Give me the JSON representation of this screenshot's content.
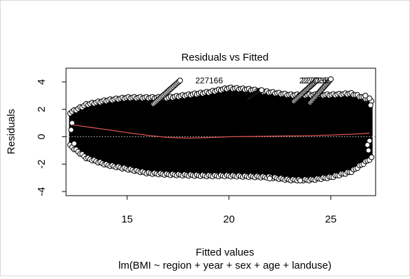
{
  "chart_data": {
    "type": "scatter",
    "title": "Residuals vs Fitted",
    "xlabel": "Fitted values",
    "ylabel": "Residuals",
    "subtitle": "lm(BMI ~ region + year + sex + age + landuse)",
    "xlim": [
      12,
      27.2
    ],
    "ylim": [
      -4.3,
      5
    ],
    "xticks": [
      15,
      20,
      25
    ],
    "yticks": [
      -4,
      -2,
      0,
      2,
      4
    ],
    "reference_line_y": 0,
    "point_color": "#000000",
    "smoother_color": "#d9534f",
    "reference_color": "#9e9e9e",
    "smoother": {
      "x": [
        12.3,
        13,
        14,
        15,
        16,
        17,
        18,
        19,
        20,
        21,
        22,
        23,
        24,
        25,
        26,
        26.9
      ],
      "y": [
        0.88,
        0.72,
        0.52,
        0.3,
        0.1,
        -0.05,
        -0.1,
        -0.06,
        0.0,
        0.02,
        0.04,
        0.06,
        0.08,
        0.12,
        0.18,
        0.26
      ]
    },
    "envelope": {
      "x": [
        12.2,
        13,
        14,
        15,
        16,
        17,
        18,
        19,
        20,
        21,
        22,
        23,
        24,
        25,
        26,
        27.0
      ],
      "upper": [
        1.7,
        2.3,
        2.6,
        2.8,
        2.8,
        2.8,
        3.0,
        3.2,
        3.5,
        3.4,
        3.2,
        3.0,
        3.0,
        3.0,
        3.1,
        2.6
      ],
      "lower": [
        -0.6,
        -1.5,
        -2.0,
        -2.3,
        -2.6,
        -2.7,
        -2.75,
        -2.8,
        -2.8,
        -2.85,
        -2.9,
        -3.1,
        -3.1,
        -2.9,
        -2.5,
        -1.5
      ]
    },
    "outlier_streaks": [
      {
        "x0": 16.3,
        "y0": 2.4,
        "x1": 17.6,
        "y1": 4.1
      },
      {
        "x0": 23.2,
        "y0": 2.6,
        "x1": 24.3,
        "y1": 4.1
      },
      {
        "x0": 24.0,
        "y0": 2.5,
        "x1": 25.0,
        "y1": 4.2
      },
      {
        "x0": 21.0,
        "y0": 2.8,
        "x1": 21.6,
        "y1": 3.4
      }
    ],
    "extra_points": [
      {
        "x": 12.3,
        "y": 1.0
      },
      {
        "x": 12.25,
        "y": 0.5
      },
      {
        "x": 12.4,
        "y": -0.5
      },
      {
        "x": 26.9,
        "y": 2.8
      },
      {
        "x": 26.85,
        "y": -1.0
      },
      {
        "x": 26.9,
        "y": -0.3
      },
      {
        "x": 26.8,
        "y": -0.6
      },
      {
        "x": 26.95,
        "y": 2.3
      },
      {
        "x": 26.7,
        "y": 3.0
      },
      {
        "x": 23.5,
        "y": -3.2
      },
      {
        "x": 22.0,
        "y": -3.05
      }
    ],
    "point_labels": [
      {
        "label": "227166",
        "x": 18.35,
        "y": 4.1
      },
      {
        "label": "227726",
        "x": 23.45,
        "y": 4.1
      },
      {
        "label": "227735",
        "x": 23.55,
        "y": 4.1
      }
    ]
  }
}
